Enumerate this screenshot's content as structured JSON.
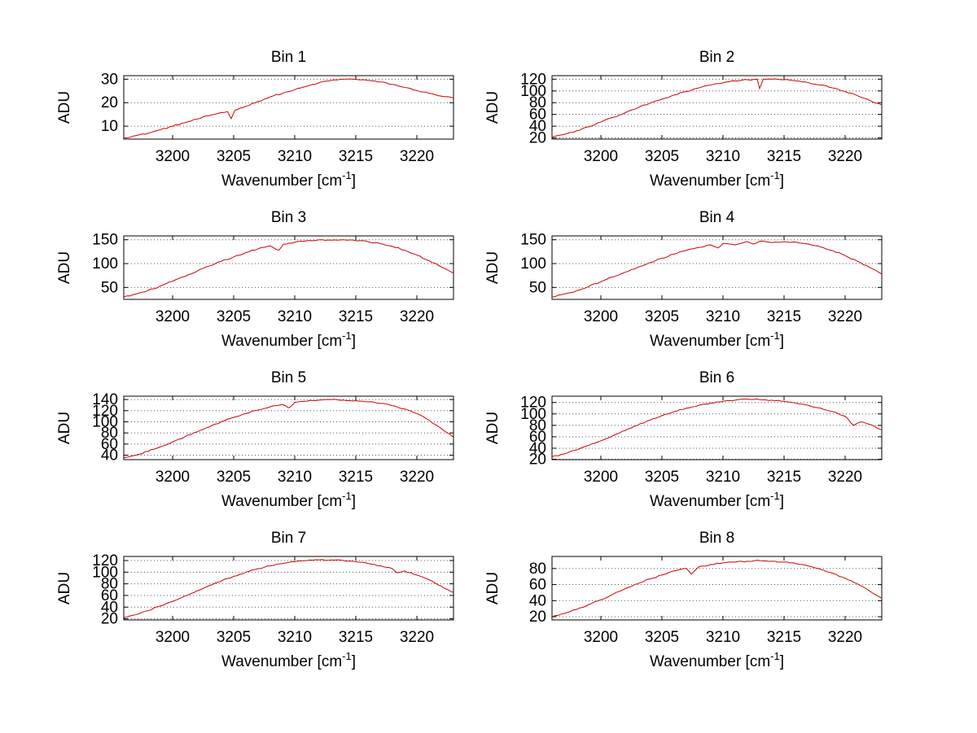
{
  "figure": {
    "background": "#ffffff",
    "rows": 4,
    "cols": 2
  },
  "colors": {
    "line": "#cc0000",
    "grid": "#555555",
    "axis": "#000000",
    "text": "#000000"
  },
  "axis": {
    "xlim": [
      3196,
      3223
    ],
    "xticks": [
      3200,
      3205,
      3210,
      3215,
      3220
    ],
    "xlabel_pre": "Wavenumber [cm",
    "xlabel_sup": "-1",
    "xlabel_post": "]",
    "ylabel": "ADU"
  },
  "chart_data": [
    {
      "type": "line",
      "title": "Bin 1",
      "ylabel": "ADU",
      "xlabel": "Wavenumber [cm-1]",
      "ylim": [
        4.5,
        31.5
      ],
      "yticks": [
        10,
        20,
        30
      ],
      "noise": 0.25,
      "x": [
        3196,
        3197,
        3198,
        3199,
        3200,
        3201,
        3202,
        3203,
        3204,
        3204.5,
        3204.8,
        3205.1,
        3206,
        3207,
        3208,
        3209,
        3210,
        3211,
        3212,
        3213,
        3214,
        3215,
        3216,
        3217,
        3218,
        3219,
        3220,
        3221,
        3222,
        3223
      ],
      "y": [
        5,
        6,
        7,
        8.5,
        10,
        11.5,
        13,
        14.5,
        15.8,
        16.2,
        13.2,
        16.8,
        18.5,
        20.5,
        22.5,
        24,
        25.5,
        27,
        28.5,
        29.5,
        30,
        30,
        29.5,
        28.8,
        27.8,
        26.5,
        25.2,
        24,
        22.8,
        22
      ]
    },
    {
      "type": "line",
      "title": "Bin 2",
      "ylabel": "ADU",
      "xlabel": "Wavenumber [cm-1]",
      "ylim": [
        18,
        126
      ],
      "yticks": [
        20,
        40,
        60,
        80,
        100,
        120
      ],
      "noise": 1.0,
      "x": [
        3196,
        3197,
        3198,
        3199,
        3200,
        3201,
        3202,
        3203,
        3204,
        3205,
        3206,
        3207,
        3208,
        3209,
        3210,
        3211,
        3212,
        3212.8,
        3213,
        3213.3,
        3214,
        3215,
        3216,
        3217,
        3218,
        3219,
        3220,
        3221,
        3222,
        3223
      ],
      "y": [
        22,
        26,
        32,
        39,
        47,
        55,
        63,
        71,
        79,
        86,
        93,
        99,
        105,
        110,
        114,
        117,
        119,
        120,
        104,
        120,
        120,
        119,
        117,
        114,
        110,
        105,
        99,
        92,
        84,
        76
      ]
    },
    {
      "type": "line",
      "title": "Bin 3",
      "ylabel": "ADU",
      "xlabel": "Wavenumber [cm-1]",
      "ylim": [
        25,
        158
      ],
      "yticks": [
        50,
        100,
        150
      ],
      "noise": 1.3,
      "x": [
        3196,
        3197,
        3198,
        3199,
        3200,
        3201,
        3202,
        3203,
        3204,
        3205,
        3206,
        3207,
        3208,
        3208.7,
        3209.1,
        3210,
        3211,
        3212,
        3213,
        3214,
        3215,
        3216,
        3217,
        3218,
        3219,
        3220,
        3221,
        3222,
        3223
      ],
      "y": [
        30,
        36,
        44,
        53,
        63,
        73,
        84,
        95,
        105,
        114,
        123,
        131,
        137,
        128,
        141,
        145,
        148,
        150,
        149,
        150,
        148,
        146,
        142,
        136,
        128,
        118,
        106,
        93,
        80
      ]
    },
    {
      "type": "line",
      "title": "Bin 4",
      "ylabel": "ADU",
      "xlabel": "Wavenumber [cm-1]",
      "ylim": [
        25,
        158
      ],
      "yticks": [
        50,
        100,
        150
      ],
      "noise": 1.3,
      "x": [
        3196,
        3197,
        3198,
        3199,
        3200,
        3201,
        3202,
        3203,
        3204,
        3205,
        3206,
        3207,
        3208,
        3209,
        3209.6,
        3210,
        3211,
        3212,
        3212.5,
        3213,
        3214,
        3215,
        3216,
        3217,
        3218,
        3219,
        3220,
        3221,
        3222,
        3223
      ],
      "y": [
        30,
        36,
        43,
        52,
        62,
        72,
        82,
        92,
        102,
        111,
        120,
        128,
        134,
        139,
        133,
        142,
        139,
        146,
        141,
        147,
        144,
        146,
        145,
        141,
        135,
        127,
        117,
        105,
        92,
        78
      ]
    },
    {
      "type": "line",
      "title": "Bin 5",
      "ylabel": "ADU",
      "xlabel": "Wavenumber [cm-1]",
      "ylim": [
        32,
        146
      ],
      "yticks": [
        40,
        60,
        80,
        100,
        120,
        140
      ],
      "noise": 1.1,
      "x": [
        3196,
        3197,
        3198,
        3199,
        3200,
        3201,
        3202,
        3203,
        3204,
        3205,
        3206,
        3207,
        3208,
        3209,
        3209.5,
        3210,
        3211,
        3212,
        3213,
        3214,
        3215,
        3216,
        3217,
        3218,
        3219,
        3220,
        3221,
        3222,
        3223
      ],
      "y": [
        35,
        40,
        47,
        55,
        64,
        73,
        82,
        91,
        100,
        108,
        115,
        121,
        127,
        131,
        125,
        135,
        137,
        139,
        140,
        139,
        138,
        136,
        133,
        129,
        123,
        115,
        103,
        88,
        72
      ]
    },
    {
      "type": "line",
      "title": "Bin 6",
      "ylabel": "ADU",
      "xlabel": "Wavenumber [cm-1]",
      "ylim": [
        20,
        131
      ],
      "yticks": [
        20,
        40,
        60,
        80,
        100,
        120
      ],
      "noise": 1.0,
      "x": [
        3196,
        3197,
        3198,
        3199,
        3200,
        3201,
        3202,
        3203,
        3204,
        3205,
        3206,
        3207,
        3208,
        3209,
        3210,
        3211,
        3212,
        3213,
        3214,
        3215,
        3216,
        3217,
        3218,
        3219,
        3220,
        3220.7,
        3221.3,
        3222,
        3223
      ],
      "y": [
        25,
        30,
        37,
        45,
        53,
        62,
        71,
        80,
        89,
        97,
        104,
        110,
        115,
        119,
        122,
        124,
        126,
        125,
        124,
        122,
        119,
        115,
        110,
        104,
        96,
        80,
        86,
        82,
        72
      ]
    },
    {
      "type": "line",
      "title": "Bin 7",
      "ylabel": "ADU",
      "xlabel": "Wavenumber [cm-1]",
      "ylim": [
        18,
        127
      ],
      "yticks": [
        20,
        40,
        60,
        80,
        100,
        120
      ],
      "noise": 0.9,
      "x": [
        3196,
        3197,
        3198,
        3199,
        3200,
        3201,
        3202,
        3203,
        3204,
        3205,
        3206,
        3207,
        3208,
        3209,
        3210,
        3211,
        3212,
        3213,
        3214,
        3215,
        3216,
        3217,
        3218,
        3218.4,
        3219,
        3220,
        3221,
        3222,
        3223
      ],
      "y": [
        22,
        27,
        34,
        42,
        50,
        59,
        68,
        77,
        85,
        93,
        100,
        106,
        111,
        115,
        118,
        120,
        121,
        121,
        120,
        118,
        115,
        111,
        106,
        99,
        102,
        95,
        87,
        76,
        65
      ]
    },
    {
      "type": "line",
      "title": "Bin 8",
      "ylabel": "ADU",
      "xlabel": "Wavenumber [cm-1]",
      "ylim": [
        16,
        95
      ],
      "yticks": [
        20,
        40,
        60,
        80
      ],
      "noise": 0.7,
      "x": [
        3196,
        3197,
        3198,
        3199,
        3200,
        3201,
        3202,
        3203,
        3204,
        3205,
        3206,
        3207,
        3207.4,
        3208,
        3209,
        3210,
        3211,
        3212,
        3213,
        3214,
        3215,
        3216,
        3217,
        3218,
        3219,
        3220,
        3221,
        3222,
        3223
      ],
      "y": [
        20,
        24,
        29,
        35,
        41,
        48,
        55,
        61,
        67,
        72,
        77,
        80,
        73,
        82,
        85,
        87,
        88,
        89,
        90,
        89,
        88,
        86,
        83,
        79,
        74,
        68,
        61,
        52,
        43
      ]
    }
  ]
}
